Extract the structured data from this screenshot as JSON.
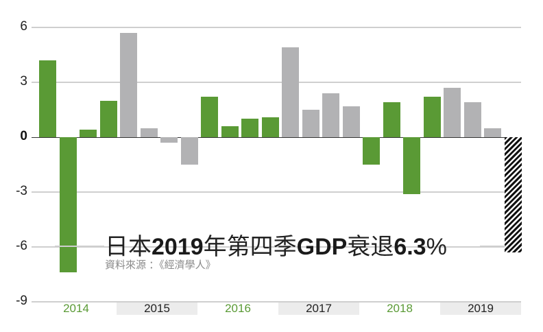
{
  "chart_data": {
    "type": "bar",
    "title": "日本2019年第四季GDP衰退6.3%",
    "subtitle": "資料來源 ：《經濟學人》",
    "xlabel": "",
    "ylabel": "",
    "ylim": [
      -9,
      6
    ],
    "yticks": [
      6,
      3,
      0,
      -3,
      -6,
      -9
    ],
    "grid": true,
    "legend": null,
    "year_groups": [
      {
        "label": "2014",
        "shaded": false
      },
      {
        "label": "2015",
        "shaded": true
      },
      {
        "label": "2016",
        "shaded": false
      },
      {
        "label": "2017",
        "shaded": true
      },
      {
        "label": "2018",
        "shaded": false
      },
      {
        "label": "2019",
        "shaded": true
      }
    ],
    "categories": [
      "2014Q1",
      "2014Q2",
      "2014Q3",
      "2014Q4",
      "2015Q1",
      "2015Q2",
      "2015Q3",
      "2015Q4",
      "2016Q1",
      "2016Q2",
      "2016Q3",
      "2016Q4",
      "2017Q1",
      "2017Q2",
      "2017Q3",
      "2017Q4",
      "2018Q1",
      "2018Q2",
      "2018Q3",
      "2018Q4",
      "2019Q1",
      "2019Q2",
      "2019Q3",
      "2019Q4"
    ],
    "values": [
      4.2,
      -7.4,
      0.4,
      2.0,
      5.7,
      0.5,
      -0.3,
      -1.5,
      2.2,
      0.6,
      1.0,
      1.1,
      4.9,
      1.5,
      2.4,
      1.7,
      -1.5,
      1.9,
      -3.1,
      2.2,
      2.7,
      1.9,
      0.5,
      -6.3
    ],
    "bar_styles": [
      "green",
      "green",
      "green",
      "green",
      "gray",
      "gray",
      "gray",
      "gray",
      "green",
      "green",
      "green",
      "green",
      "gray",
      "gray",
      "gray",
      "gray",
      "green",
      "green",
      "green",
      "green",
      "gray",
      "gray",
      "gray",
      "hatch"
    ],
    "colors": {
      "green": "#5a9a35",
      "gray": "#b2b2b4",
      "hatch": "#111111",
      "grid": "#cfcfcf",
      "year_band": "#ececec"
    }
  },
  "title": {
    "part1": "日本",
    "part2": "2019",
    "part3": "年第四季",
    "part4": "GDP",
    "part5": "衰退",
    "part6": "6.3",
    "part7": "%"
  },
  "source": "資料來源 ：《經濟學人》"
}
